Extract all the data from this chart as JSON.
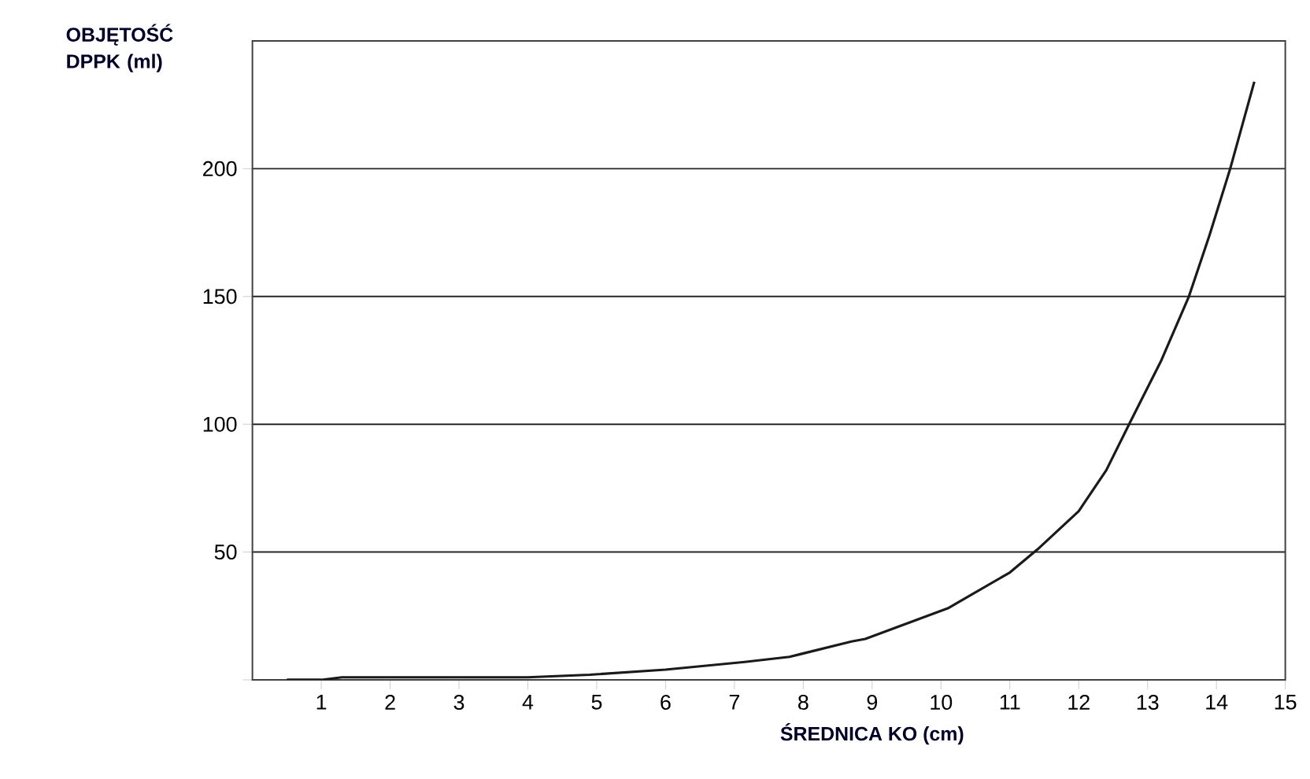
{
  "chart_data": {
    "type": "line",
    "xlabel": "ŚREDNICA KO (cm)",
    "ylabel": "OBJĘTOŚĆ DPPK (ml)",
    "xlim": [
      0,
      15
    ],
    "ylim": [
      0,
      250
    ],
    "xticks": [
      1,
      2,
      3,
      4,
      5,
      6,
      7,
      8,
      9,
      10,
      11,
      12,
      13,
      14,
      15
    ],
    "yticks": [
      {
        "value": 0,
        "label": null
      },
      50,
      100,
      150,
      200
    ],
    "grid": "y",
    "marker": "none",
    "line_style": "solid",
    "series": [
      {
        "color": "#1a1a1a",
        "x": [
          0.5,
          1.0,
          1.3,
          2,
          3,
          4,
          4.9,
          6.0,
          7.15,
          7.8,
          8.7,
          8.9,
          10.1,
          11.0,
          11.4,
          12.0,
          12.4,
          12.75,
          13.2,
          13.6,
          13.9,
          14.2,
          14.55
        ],
        "values": [
          0,
          0,
          1,
          1,
          1,
          1,
          2,
          4,
          7,
          9,
          15,
          16,
          28,
          42,
          51,
          66,
          82,
          101,
          125,
          150,
          174,
          200,
          234
        ]
      }
    ]
  }
}
